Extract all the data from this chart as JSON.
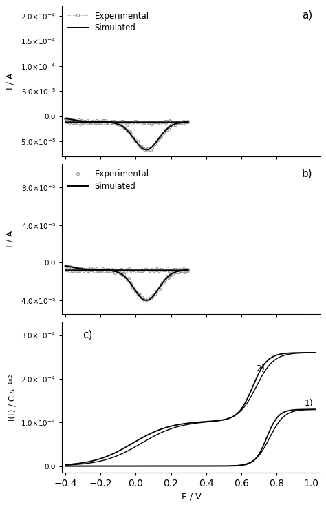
{
  "panel_a": {
    "label": "a)",
    "ylabel": "I / A",
    "ylim": [
      -8e-05,
      0.00022
    ],
    "yticks": [
      -5e-05,
      0.0,
      5e-05,
      0.0001,
      0.00015,
      0.0002
    ],
    "ytick_labels": [
      "-5.0×10⁻⁵",
      "0.0",
      "5.0×10⁻⁵",
      "1.0×10⁻⁴",
      "1.5×10⁻⁴",
      "2.0×10⁻⁴"
    ],
    "xlim": [
      -0.42,
      1.05
    ]
  },
  "panel_b": {
    "label": "b)",
    "ylabel": "I / A",
    "ylim": [
      -5.5e-05,
      0.000105
    ],
    "yticks": [
      -4e-05,
      0.0,
      4e-05,
      8e-05
    ],
    "ytick_labels": [
      "-4.0×10⁻⁵",
      "0.0",
      "4.0×10⁻⁵",
      "8.0×10⁻⁵"
    ],
    "xlim": [
      -0.42,
      1.05
    ]
  },
  "panel_c": {
    "label": "c)",
    "ylabel": "I(t) / C s⁻¹ⁿ²",
    "xlabel": "E / V",
    "ylim": [
      -1.5e-05,
      0.00033
    ],
    "yticks": [
      0.0,
      0.0001,
      0.0002,
      0.0003
    ],
    "ytick_labels": [
      "0.0",
      "1.0×10⁻⁴",
      "2.0×10⁻⁴",
      "3.0×10⁻⁴"
    ],
    "xlim": [
      -0.42,
      1.05
    ],
    "curve1_plateau": 0.00013,
    "curve2_plateau": 0.00026
  },
  "legend_exp": "Experimental",
  "legend_sim": "Simulated",
  "color_exp": "#999999",
  "color_sim": "#000000",
  "bg_color": "#ffffff"
}
